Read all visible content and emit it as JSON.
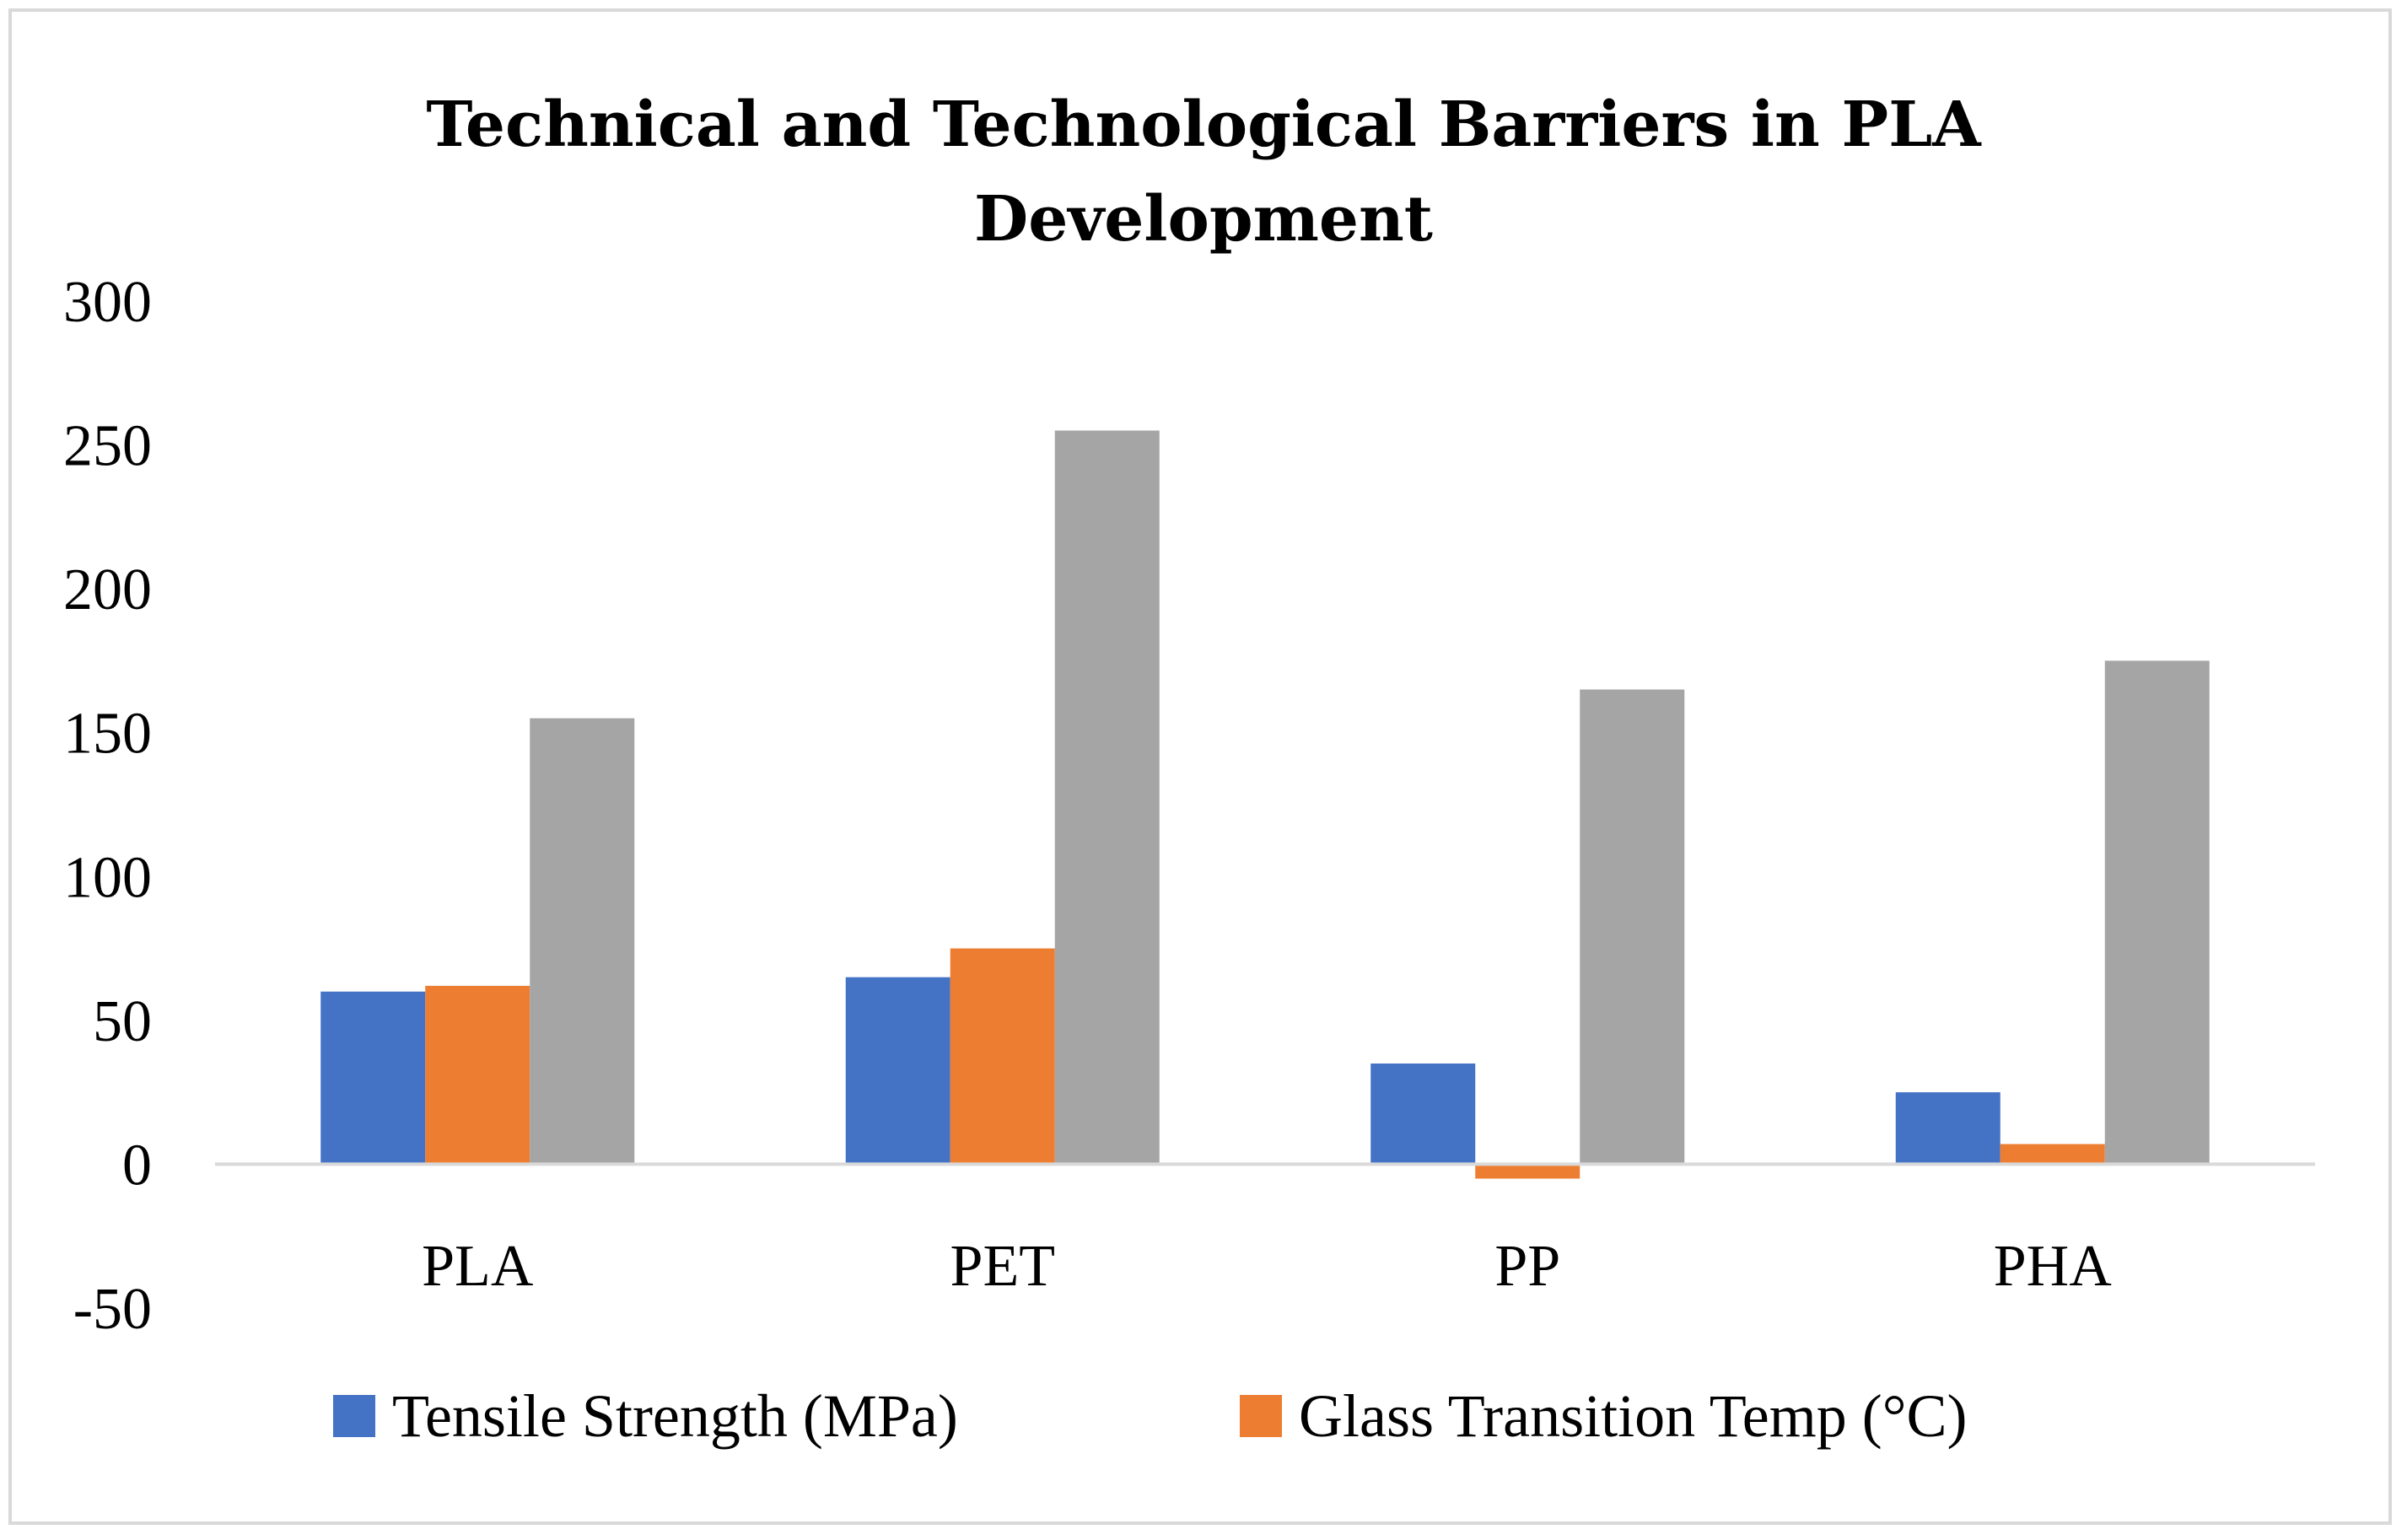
{
  "chart_data": {
    "type": "bar",
    "title_lines": [
      "Technical and Technological Barriers in PLA",
      "Development"
    ],
    "categories": [
      "PLA",
      "PET",
      "PP",
      "PHA"
    ],
    "series": [
      {
        "name": "Tensile Strength (MPa)",
        "color": "#4472C4",
        "values": [
          60,
          65,
          35,
          25
        ]
      },
      {
        "name": "Glass Transition Temp (°C)",
        "color": "#ED7D31",
        "values": [
          62,
          75,
          -5,
          7
        ]
      },
      {
        "color": "#A5A5A5",
        "values": [
          155,
          255,
          165,
          175
        ]
      }
    ],
    "ylim": [
      -50,
      300
    ],
    "yticks": [
      -50,
      0,
      50,
      100,
      150,
      200,
      250,
      300
    ],
    "grid": false,
    "legend_position": "bottom",
    "xlabel": "",
    "ylabel": ""
  }
}
